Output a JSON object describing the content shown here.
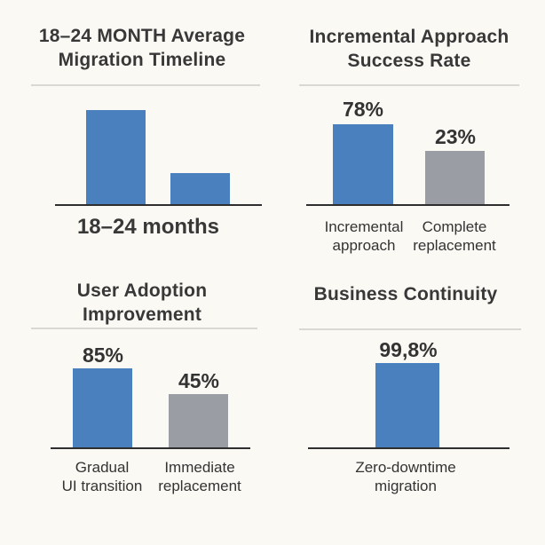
{
  "colors": {
    "background": "#FAF9F4",
    "bar_blue": "#4A80BD",
    "bar_gray": "#9A9DA3",
    "text": "#383838",
    "axis": "#2E2E2E",
    "divider": "#DAD8D2"
  },
  "panels": [
    {
      "title_line1": "18–24 MONTH Average",
      "title_line2": "Migration Timeline",
      "axis_label": "18–24 months"
    },
    {
      "title_line1": "Incremental Approach",
      "title_line2": "Success Rate",
      "bar1_value": "78%",
      "bar2_value": "23%",
      "bar1_label_line1": "Incremental",
      "bar1_label_line2": "approach",
      "bar2_label_line1": "Complete",
      "bar2_label_line2": "replacement"
    },
    {
      "title_line1": "User Adoption",
      "title_line2": "Improvement",
      "bar1_value": "85%",
      "bar2_value": "45%",
      "bar1_label_line1": "Gradual",
      "bar1_label_line2": "UI transition",
      "bar2_label_line1": "Immediate",
      "bar2_label_line2": "replacement"
    },
    {
      "title_line1": "Business Continuity",
      "bar1_value": "99,8%",
      "bar1_label_line1": "Zero-downtime",
      "bar1_label_line2": "migration"
    }
  ],
  "chart_data": [
    {
      "type": "bar",
      "title": "18–24 MONTH Average Migration Timeline",
      "categories": [
        "",
        ""
      ],
      "values": [
        null,
        null
      ],
      "relative_heights": [
        1.0,
        0.34
      ],
      "value_labels_shown": false,
      "bar_colors": [
        "#4A80BD",
        "#4A80BD"
      ],
      "xlabel": "18–24 months",
      "grid": false,
      "legend": "none"
    },
    {
      "type": "bar",
      "title": "Incremental Approach Success Rate",
      "categories": [
        "Incremental approach",
        "Complete replacement"
      ],
      "values": [
        78,
        23
      ],
      "value_labels": [
        "78%",
        "23%"
      ],
      "bar_colors": [
        "#4A80BD",
        "#9A9DA3"
      ],
      "ylim": [
        0,
        100
      ],
      "grid": false,
      "legend": "none"
    },
    {
      "type": "bar",
      "title": "User Adoption Improvement",
      "categories": [
        "Gradual UI transition",
        "Immediate replacement"
      ],
      "values": [
        85,
        45
      ],
      "value_labels": [
        "85%",
        "45%"
      ],
      "bar_colors": [
        "#4A80BD",
        "#9A9DA3"
      ],
      "ylim": [
        0,
        100
      ],
      "grid": false,
      "legend": "none"
    },
    {
      "type": "bar",
      "title": "Business Continuity",
      "categories": [
        "Zero-downtime migration"
      ],
      "values": [
        99.8
      ],
      "value_labels": [
        "99,8%"
      ],
      "bar_colors": [
        "#4A80BD"
      ],
      "ylim": [
        0,
        100
      ],
      "grid": false,
      "legend": "none"
    }
  ]
}
